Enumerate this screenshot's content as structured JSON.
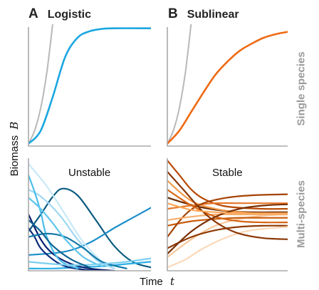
{
  "headers": {
    "A": {
      "letter": "A",
      "label": "Logistic"
    },
    "B": {
      "letter": "B",
      "label": "Sublinear"
    }
  },
  "axes": {
    "ylabel": "Biomass",
    "ylabel_symbol": "B",
    "xlabel": "Time",
    "xlabel_symbol": "t"
  },
  "row_labels": {
    "top": "Single species",
    "bottom": "Multi-species"
  },
  "panel_titles": {
    "A_bottom": "Unstable",
    "B_bottom": "Stable"
  },
  "colors": {
    "axis": "#aaaaaa",
    "reference": "#b8b8b8",
    "logistic": "#1aa7e0",
    "sublinear": "#ee6a14"
  },
  "chart_data": [
    {
      "type": "line",
      "panel": "A-top",
      "series": [
        {
          "style": "reference",
          "x": [
            0,
            0.05,
            0.1,
            0.15,
            0.2
          ],
          "y": [
            0.02,
            0.13,
            0.32,
            0.62,
            1.05
          ]
        },
        {
          "style": "logistic",
          "x": [
            0,
            0.1,
            0.2,
            0.3,
            0.4,
            0.5,
            0.6,
            0.7,
            1.0
          ],
          "y": [
            0.02,
            0.13,
            0.42,
            0.75,
            0.91,
            0.965,
            0.985,
            0.99,
            0.99
          ]
        }
      ]
    },
    {
      "type": "line",
      "panel": "B-top",
      "series": [
        {
          "style": "reference",
          "x": [
            0,
            0.05,
            0.1,
            0.15,
            0.2
          ],
          "y": [
            0.02,
            0.13,
            0.32,
            0.62,
            1.05
          ]
        },
        {
          "style": "sublinear",
          "x": [
            0,
            0.1,
            0.2,
            0.3,
            0.4,
            0.5,
            0.6,
            0.7,
            0.8,
            0.9,
            1.0
          ],
          "y": [
            0.02,
            0.13,
            0.29,
            0.45,
            0.6,
            0.71,
            0.8,
            0.86,
            0.91,
            0.94,
            0.96
          ]
        }
      ]
    },
    {
      "type": "line",
      "panel": "A-bottom",
      "series": [
        {
          "color": "#0a5a80",
          "x": [
            0,
            0.1,
            0.2,
            0.28,
            0.4,
            0.55,
            0.7,
            0.85,
            1.0
          ],
          "y": [
            0.35,
            0.5,
            0.66,
            0.73,
            0.67,
            0.45,
            0.22,
            0.08,
            0.03
          ]
        },
        {
          "color": "#2bb0e6",
          "x": [
            0,
            0.2,
            0.4,
            0.6,
            0.8,
            1.0
          ],
          "y": [
            0.02,
            0.02,
            0.03,
            0.04,
            0.06,
            0.08
          ]
        },
        {
          "color": "#1b8ec8",
          "x": [
            0,
            0.3,
            0.5,
            0.7,
            0.85,
            1.0
          ],
          "y": [
            0.14,
            0.17,
            0.25,
            0.38,
            0.47,
            0.56
          ]
        },
        {
          "color": "#0e2d7a",
          "x": [
            0,
            0.05,
            0.1,
            0.2,
            0.3,
            0.45,
            0.6
          ],
          "y": [
            0.38,
            0.3,
            0.2,
            0.1,
            0.04,
            0.01,
            0.0
          ]
        },
        {
          "color": "#0a1e6e",
          "x": [
            0,
            0.1,
            0.2,
            0.35,
            0.5,
            0.7
          ],
          "y": [
            0.5,
            0.28,
            0.15,
            0.06,
            0.02,
            0.0
          ]
        },
        {
          "color": "#9fd8f2",
          "x": [
            0,
            0.1,
            0.25,
            0.4,
            0.55,
            0.7
          ],
          "y": [
            0.72,
            0.66,
            0.5,
            0.28,
            0.1,
            0.02
          ]
        },
        {
          "color": "#c8e9f8",
          "x": [
            0,
            0.15,
            0.3,
            0.45,
            0.6
          ],
          "y": [
            0.95,
            0.75,
            0.5,
            0.25,
            0.08
          ]
        },
        {
          "color": "#4cbdea",
          "x": [
            0,
            0.05,
            0.1,
            0.15,
            0.25,
            0.4
          ],
          "y": [
            0.85,
            0.7,
            0.52,
            0.3,
            0.1,
            0.02
          ]
        },
        {
          "color": "#147aa8",
          "x": [
            0,
            0.15,
            0.3,
            0.45,
            0.6,
            0.8
          ],
          "y": [
            0.3,
            0.33,
            0.3,
            0.2,
            0.08,
            0.02
          ]
        },
        {
          "color": "#5fc6ee",
          "x": [
            0,
            0.1,
            0.2,
            0.3,
            0.45,
            0.6
          ],
          "y": [
            0.65,
            0.55,
            0.42,
            0.28,
            0.12,
            0.04
          ]
        },
        {
          "color": "#7ccff0",
          "x": [
            0,
            0.2,
            0.4,
            0.6,
            0.8,
            1.0
          ],
          "y": [
            0.08,
            0.06,
            0.05,
            0.06,
            0.08,
            0.11
          ]
        },
        {
          "color": "#0f6492",
          "x": [
            0,
            0.1,
            0.2,
            0.35,
            0.5
          ],
          "y": [
            0.45,
            0.35,
            0.22,
            0.1,
            0.03
          ]
        }
      ]
    },
    {
      "type": "line",
      "panel": "B-bottom",
      "series": [
        {
          "color": "#b84a05",
          "x": [
            0,
            0.1,
            0.2,
            0.3,
            0.45,
            0.6,
            0.8,
            1.0
          ],
          "y": [
            0.98,
            0.85,
            0.72,
            0.64,
            0.58,
            0.56,
            0.55,
            0.55
          ]
        },
        {
          "color": "#6a2a02",
          "x": [
            0,
            0.15,
            0.3,
            0.5,
            0.7,
            1.0
          ],
          "y": [
            0.65,
            0.6,
            0.56,
            0.53,
            0.52,
            0.52
          ]
        },
        {
          "color": "#f29a4a",
          "x": [
            0,
            0.2,
            0.4,
            0.6,
            0.8,
            1.0
          ],
          "y": [
            0.8,
            0.62,
            0.55,
            0.52,
            0.51,
            0.51
          ]
        },
        {
          "color": "#f8c89a",
          "x": [
            0,
            0.2,
            0.4,
            0.6,
            0.8,
            1.0
          ],
          "y": [
            0.12,
            0.28,
            0.4,
            0.46,
            0.49,
            0.5
          ]
        },
        {
          "color": "#c85a0a",
          "x": [
            0,
            0.2,
            0.4,
            0.6,
            0.8,
            1.0
          ],
          "y": [
            0.4,
            0.44,
            0.46,
            0.47,
            0.47,
            0.47
          ]
        },
        {
          "color": "#8f3a05",
          "x": [
            0,
            0.2,
            0.4,
            0.6,
            0.8,
            1.0
          ],
          "y": [
            0.2,
            0.3,
            0.36,
            0.39,
            0.4,
            0.4
          ]
        },
        {
          "color": "#e8782a",
          "x": [
            0,
            0.2,
            0.4,
            0.6,
            0.8,
            1.0
          ],
          "y": [
            0.55,
            0.58,
            0.6,
            0.6,
            0.6,
            0.6
          ]
        },
        {
          "color": "#fbd9b8",
          "x": [
            0,
            0.15,
            0.3,
            0.5,
            0.7,
            1.0
          ],
          "y": [
            0.03,
            0.1,
            0.2,
            0.3,
            0.36,
            0.39
          ]
        },
        {
          "color": "#a44303",
          "x": [
            0,
            0.15,
            0.3,
            0.5,
            0.7,
            1.0
          ],
          "y": [
            0.3,
            0.5,
            0.6,
            0.65,
            0.67,
            0.68
          ]
        },
        {
          "color": "#f5b070",
          "x": [
            0,
            0.2,
            0.4,
            0.6,
            0.8,
            1.0
          ],
          "y": [
            0.45,
            0.48,
            0.5,
            0.5,
            0.5,
            0.5
          ]
        },
        {
          "color": "#d86614",
          "x": [
            0,
            0.2,
            0.4,
            0.6,
            0.8,
            1.0
          ],
          "y": [
            0.72,
            0.58,
            0.48,
            0.44,
            0.43,
            0.43
          ]
        },
        {
          "color": "#7a3002",
          "x": [
            0,
            0.2,
            0.4,
            0.6,
            0.8,
            1.0
          ],
          "y": [
            0.15,
            0.35,
            0.48,
            0.55,
            0.58,
            0.59
          ]
        },
        {
          "color": "#8a3603",
          "x": [
            0,
            0.15,
            0.3,
            0.45,
            0.6,
            0.8,
            1.0
          ],
          "y": [
            0.88,
            0.7,
            0.52,
            0.4,
            0.33,
            0.29,
            0.28
          ]
        },
        {
          "color": "#ffa85a",
          "x": [
            0,
            0.2,
            0.4,
            0.6,
            0.8,
            1.0
          ],
          "y": [
            0.6,
            0.54,
            0.52,
            0.51,
            0.51,
            0.51
          ]
        }
      ]
    }
  ]
}
